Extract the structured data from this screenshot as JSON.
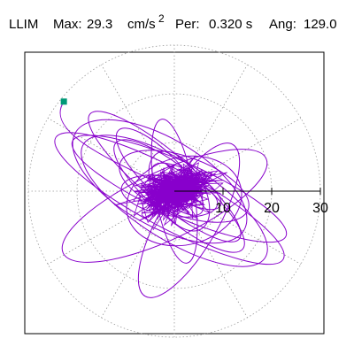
{
  "chart_data": {
    "type": "scatter",
    "title": {
      "station": "LLIM",
      "max_label": "Max:",
      "max_value": "29.3",
      "max_unit_base": "cm/s",
      "max_unit_exp": "2",
      "per_label": "Per:",
      "per_value": "0.320 s",
      "ang_label": "Ang:",
      "ang_value": "129.0"
    },
    "radial_axis": {
      "max": 30,
      "ticks": [
        10,
        20,
        30
      ],
      "tick_labels": [
        "10",
        "20",
        "30"
      ]
    },
    "grid": {
      "rings": [
        10,
        20,
        30
      ],
      "spoke_angles_deg": [
        0,
        30,
        60,
        90,
        120,
        150,
        180,
        210,
        240,
        270,
        300,
        330
      ],
      "style": "dotted"
    },
    "peak_angle_deg": 129.0,
    "peak_marker": {
      "x": -22.7,
      "y": 18.4
    },
    "orbit_loops": [
      {
        "a": 26.5,
        "b": 6.0,
        "angle": 152,
        "cx": -1.0,
        "cy": -1.5
      },
      {
        "a": 24.0,
        "b": 5.5,
        "angle": 156,
        "cx": 1.0,
        "cy": 0.5
      },
      {
        "a": 22.0,
        "b": 8.0,
        "angle": 148,
        "cx": 0.0,
        "cy": -2.0
      },
      {
        "a": 23.0,
        "b": 7.0,
        "angle": 25,
        "cx": -2.0,
        "cy": -3.0
      },
      {
        "a": 20.0,
        "b": 9.0,
        "angle": 150,
        "cx": -3.0,
        "cy": 2.0
      },
      {
        "a": 17.0,
        "b": 5.0,
        "angle": 140,
        "cx": 1.0,
        "cy": -1.0
      },
      {
        "a": 12.0,
        "b": 9.0,
        "angle": 15,
        "cx": 2.0,
        "cy": -2.0
      },
      {
        "a": 15.0,
        "b": 4.0,
        "angle": 100,
        "cx": 0.0,
        "cy": 0.0
      },
      {
        "a": 14.0,
        "b": 6.0,
        "angle": 160,
        "cx": 2.0,
        "cy": 1.0
      },
      {
        "a": 10.0,
        "b": 4.0,
        "angle": 170,
        "cx": -1.0,
        "cy": -1.0
      },
      {
        "a": 9.0,
        "b": 5.0,
        "angle": 120,
        "cx": 1.0,
        "cy": 0.0
      },
      {
        "a": 18.0,
        "b": 6.0,
        "angle": 60,
        "cx": 3.0,
        "cy": -6.0
      },
      {
        "a": 12.0,
        "b": 4.0,
        "angle": 135,
        "cx": -3.0,
        "cy": 4.0
      },
      {
        "a": 8.0,
        "b": 3.0,
        "angle": 150,
        "cx": 2.5,
        "cy": 1.0
      },
      {
        "a": 20.0,
        "b": 5.0,
        "angle": 140,
        "cx": -2.0,
        "cy": 3.0
      }
    ],
    "core_cloud": {
      "cx": 0.0,
      "cy": 0.0,
      "sx": 3.6,
      "sy": 2.1,
      "rotation_deg": 20,
      "points": 700
    },
    "colors": {
      "trace": "#8800cc",
      "marker": "#009977",
      "grid": "#9a9a9a",
      "axis": "#000000",
      "frame": "#000000",
      "text": "#000000"
    }
  }
}
